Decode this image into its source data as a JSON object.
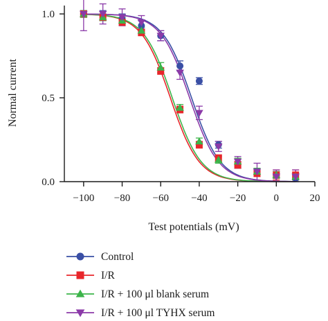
{
  "chart_data": {
    "type": "scatter",
    "xlabel": "Test potentials (mV)",
    "ylabel": "Normal current",
    "xlim": [
      -110,
      20
    ],
    "ylim": [
      0,
      1.05
    ],
    "x_ticks": [
      -100,
      -80,
      -60,
      -40,
      -20,
      0,
      20
    ],
    "x_tick_labels": [
      "−100",
      "−80",
      "−60",
      "−40",
      "−20",
      "0",
      "20"
    ],
    "y_ticks": [
      0,
      0.5,
      1.0
    ],
    "y_tick_labels": [
      "0.0",
      "0.5",
      "1.0"
    ],
    "grid": false,
    "legend_position": "bottom-left, below plot",
    "series": [
      {
        "name": "Control",
        "color": "#3a4fa5",
        "marker": "circle",
        "fit": {
          "v_half": -44,
          "k": 7.5
        },
        "x": [
          -100,
          -90,
          -80,
          -70,
          -60,
          -50,
          -40,
          -30,
          -20,
          -10,
          0,
          10
        ],
        "y": [
          1.0,
          0.99,
          0.97,
          0.93,
          0.87,
          0.69,
          0.6,
          0.22,
          0.1,
          0.06,
          0.04,
          0.02
        ],
        "err": [
          0.02,
          0.03,
          0.03,
          0.03,
          0.03,
          0.03,
          0.02,
          0.02,
          0.02,
          0.02,
          0.02,
          0.02
        ]
      },
      {
        "name": "I/R",
        "color": "#e8262b",
        "marker": "square",
        "fit": {
          "v_half": -55,
          "k": 7.5
        },
        "x": [
          -100,
          -90,
          -80,
          -70,
          -60,
          -50,
          -40,
          -30,
          -20,
          -10,
          0,
          10
        ],
        "y": [
          1.0,
          0.98,
          0.95,
          0.89,
          0.66,
          0.43,
          0.22,
          0.14,
          0.1,
          0.05,
          0.04,
          0.04
        ],
        "err": [
          0.02,
          0.02,
          0.02,
          0.02,
          0.02,
          0.02,
          0.02,
          0.02,
          0.02,
          0.02,
          0.03,
          0.03
        ]
      },
      {
        "name": "I/R + 100 μl blank serum",
        "color": "#3cb44a",
        "marker": "triangle-up",
        "fit": {
          "v_half": -54,
          "k": 7.5
        },
        "x": [
          -100,
          -90,
          -80,
          -70,
          -60,
          -50,
          -40,
          -30,
          -20,
          -10,
          0,
          10
        ],
        "y": [
          1.0,
          0.98,
          0.96,
          0.9,
          0.68,
          0.44,
          0.24,
          0.13,
          0.12,
          0.06,
          0.04,
          0.03
        ],
        "err": [
          0.02,
          0.02,
          0.02,
          0.02,
          0.03,
          0.02,
          0.02,
          0.02,
          0.02,
          0.02,
          0.02,
          0.02
        ]
      },
      {
        "name": "I/R + 100 μl TYHX serum",
        "color": "#8b3aa8",
        "marker": "triangle-down",
        "fit": {
          "v_half": -45,
          "k": 7.5
        },
        "x": [
          -100,
          -90,
          -80,
          -70,
          -60,
          -50,
          -40,
          -30,
          -20,
          -10,
          0,
          10
        ],
        "y": [
          1.0,
          1.0,
          0.98,
          0.95,
          0.87,
          0.65,
          0.41,
          0.21,
          0.12,
          0.06,
          0.03,
          0.03
        ],
        "err": [
          0.1,
          0.06,
          0.05,
          0.04,
          0.03,
          0.04,
          0.04,
          0.03,
          0.03,
          0.05,
          0.04,
          0.04
        ]
      }
    ]
  }
}
